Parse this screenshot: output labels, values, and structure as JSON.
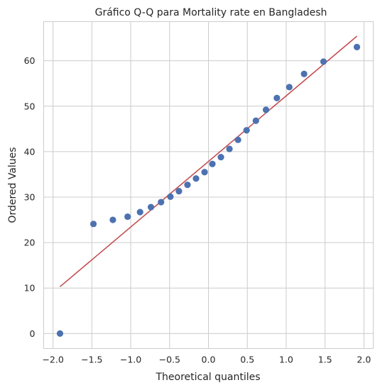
{
  "chart_data": {
    "type": "scatter",
    "title": "Gráfico Q-Q para Mortality rate en Bangladesh",
    "xlabel": "Theoretical quantiles",
    "ylabel": "Ordered Values",
    "xlim": [
      -2.12,
      2.12
    ],
    "ylim": [
      -3.3,
      68.6
    ],
    "xticks": [
      -2.0,
      -1.5,
      -1.0,
      -0.5,
      0.0,
      0.5,
      1.0,
      1.5,
      2.0
    ],
    "xtick_labels": [
      "−2.0",
      "−1.5",
      "−1.0",
      "−0.5",
      "0.0",
      "0.5",
      "1.0",
      "1.5",
      "2.0"
    ],
    "yticks": [
      0,
      10,
      20,
      30,
      40,
      50,
      60
    ],
    "ytick_labels": [
      "0",
      "10",
      "20",
      "30",
      "40",
      "50",
      "60"
    ],
    "grid": true,
    "series": [
      {
        "kind": "points",
        "color": "#4c72b0",
        "x": [
          -1.91,
          -1.48,
          -1.23,
          -1.04,
          -0.88,
          -0.74,
          -0.61,
          -0.49,
          -0.38,
          -0.27,
          -0.16,
          -0.05,
          0.05,
          0.16,
          0.27,
          0.38,
          0.49,
          0.61,
          0.74,
          0.88,
          1.04,
          1.23,
          1.48,
          1.91
        ],
        "y": [
          0.0,
          24.1,
          25.0,
          25.7,
          26.7,
          27.8,
          28.9,
          30.1,
          31.3,
          32.7,
          34.1,
          35.5,
          37.3,
          38.8,
          40.6,
          42.6,
          44.7,
          46.8,
          49.2,
          51.8,
          54.2,
          57.1,
          59.8,
          63.0
        ]
      },
      {
        "kind": "line",
        "color": "#c44e52",
        "x": [
          -1.91,
          1.91
        ],
        "y": [
          10.3,
          65.4
        ]
      }
    ]
  }
}
